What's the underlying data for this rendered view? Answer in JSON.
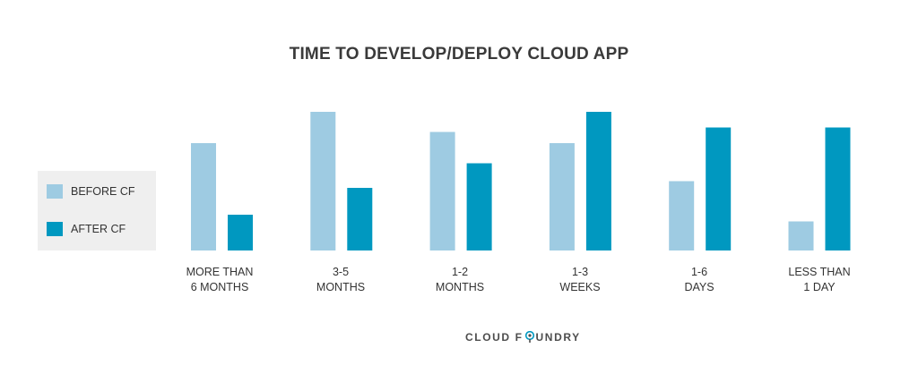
{
  "chart_data": {
    "type": "bar",
    "title": "TIME TO DEVELOP/DEPLOY CLOUD APP",
    "categories": [
      [
        "MORE THAN",
        "6 MONTHS"
      ],
      [
        "3-5",
        "MONTHS"
      ],
      [
        "1-2",
        "MONTHS"
      ],
      [
        "1-3",
        "WEEKS"
      ],
      [
        "1-6",
        "DAYS"
      ],
      [
        "LESS THAN",
        "1 DAY"
      ]
    ],
    "series": [
      {
        "name": "BEFORE CF",
        "color": "#9ecbe2",
        "values": [
          24,
          31,
          26.5,
          24,
          15.5,
          6.5
        ]
      },
      {
        "name": "AFTER CF",
        "color": "#0098c0",
        "values": [
          8,
          14,
          19.5,
          31,
          27.5,
          27.5
        ]
      }
    ],
    "legend_position": "left",
    "grid": false
  },
  "brand": {
    "left": "CLOUD F",
    "right": "UNDRY",
    "icon": "cloud-foundry-logo-o"
  }
}
